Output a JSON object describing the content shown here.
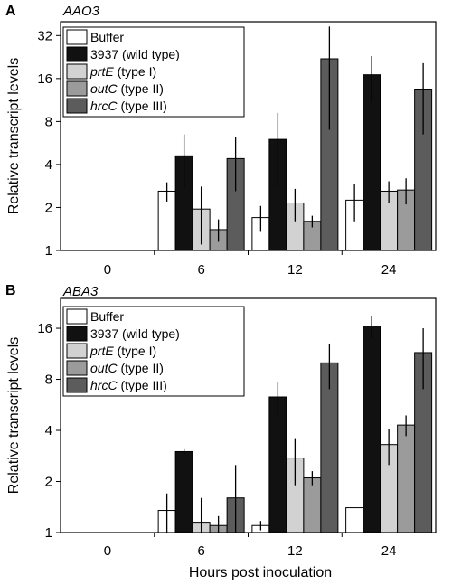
{
  "figure": {
    "xlabel": "Hours post inoculation"
  },
  "legend": [
    {
      "italic": "",
      "text": "Buffer",
      "color": "#ffffff"
    },
    {
      "italic": "",
      "text": "3937 (wild type)",
      "color": "#111111"
    },
    {
      "italic": "prtE",
      "text": " (type I)",
      "color": "#d2d2d2"
    },
    {
      "italic": "outC",
      "text": " (type II)",
      "color": "#9b9b9b"
    },
    {
      "italic": "hrcC",
      "text": " (type III)",
      "color": "#5c5c5c"
    }
  ],
  "chart_data": [
    {
      "type": "bar",
      "panel": "A",
      "title": "AAO3",
      "ylabel": "Relative transcript levels",
      "xlabel": "",
      "scale": "log2",
      "ylim": [
        1,
        40
      ],
      "yticks": [
        1,
        2,
        4,
        8,
        16,
        32
      ],
      "categories": [
        "0",
        "6",
        "12",
        "24"
      ],
      "series": [
        {
          "name": "Buffer",
          "values": [
            null,
            2.6,
            1.7,
            2.25
          ],
          "err": [
            null,
            0.4,
            0.35,
            0.65
          ]
        },
        {
          "name": "3937 (wild type)",
          "values": [
            null,
            4.6,
            6.0,
            17.0
          ],
          "err": [
            null,
            1.9,
            3.2,
            6.0
          ]
        },
        {
          "name": "prtE (type I)",
          "values": [
            null,
            1.95,
            2.15,
            2.6
          ],
          "err": [
            null,
            0.85,
            0.55,
            0.45
          ]
        },
        {
          "name": "outC (type II)",
          "values": [
            null,
            1.4,
            1.6,
            2.65
          ],
          "err": [
            null,
            0.25,
            0.15,
            0.55
          ]
        },
        {
          "name": "hrcC (type III)",
          "values": [
            null,
            4.4,
            22.0,
            13.5
          ],
          "err": [
            null,
            1.8,
            15.0,
            7.0
          ]
        }
      ]
    },
    {
      "type": "bar",
      "panel": "B",
      "title": "ABA3",
      "ylabel": "Relative transcript levels",
      "xlabel": "Hours post inoculation",
      "scale": "log2",
      "ylim": [
        1,
        24
      ],
      "yticks": [
        1,
        2,
        4,
        8,
        16
      ],
      "categories": [
        "0",
        "6",
        "12",
        "24"
      ],
      "series": [
        {
          "name": "Buffer",
          "values": [
            null,
            1.35,
            1.1,
            1.4
          ],
          "err": [
            null,
            0.35,
            0.07,
            0.0
          ]
        },
        {
          "name": "3937 (wild type)",
          "values": [
            null,
            3.0,
            6.3,
            16.5
          ],
          "err": [
            null,
            0.1,
            1.4,
            2.5
          ]
        },
        {
          "name": "prtE (type I)",
          "values": [
            null,
            1.15,
            2.75,
            3.3
          ],
          "err": [
            null,
            0.45,
            0.85,
            0.8
          ]
        },
        {
          "name": "outC (type II)",
          "values": [
            null,
            1.1,
            2.1,
            4.3
          ],
          "err": [
            null,
            0.15,
            0.2,
            0.6
          ]
        },
        {
          "name": "hrcC (type III)",
          "values": [
            null,
            1.6,
            10.0,
            11.5
          ],
          "err": [
            null,
            0.9,
            3.0,
            4.5
          ]
        }
      ]
    }
  ]
}
